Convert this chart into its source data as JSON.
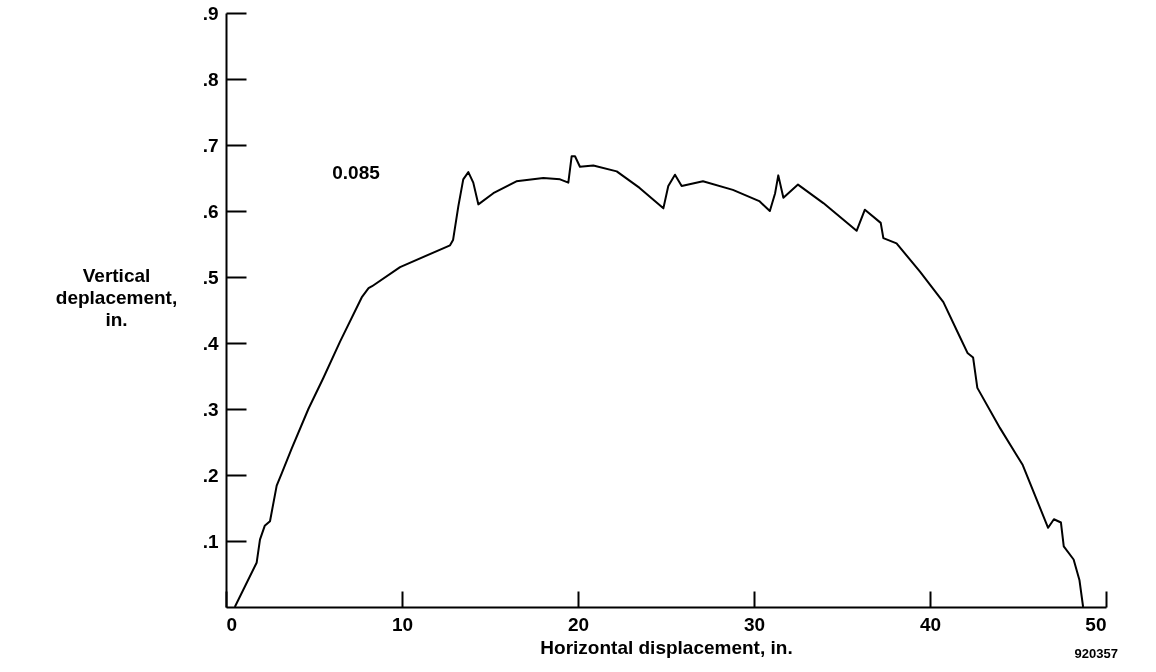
{
  "chart_data": {
    "type": "line",
    "xlabel": "Horizontal displacement, in.",
    "ylabel": "Vertical\ndeplacement,\nin.",
    "xlim": [
      0,
      50
    ],
    "xticks": [
      0,
      10,
      20,
      30,
      40,
      50
    ],
    "ylim": [
      0,
      0.9
    ],
    "yticks": [
      {
        "value": 0.1,
        "label": ".1"
      },
      {
        "value": 0.2,
        "label": ".2"
      },
      {
        "value": 0.3,
        "label": ".3"
      },
      {
        "value": 0.4,
        "label": ".4"
      },
      {
        "value": 0.5,
        "label": ".5"
      },
      {
        "value": 0.6,
        "label": ".6"
      },
      {
        "value": 0.7,
        "label": ".7"
      },
      {
        "value": 0.8,
        "label": ".8"
      },
      {
        "value": 0.9,
        "label": ".9"
      }
    ],
    "grid": false,
    "marker": "none",
    "line_style": "solid",
    "series": [
      {
        "color": "#000000",
        "x": [
          0.5,
          1.74,
          1.93,
          2.2,
          2.5,
          2.88,
          3.16,
          3.73,
          4.68,
          5.53,
          6.48,
          7.71,
          8.1,
          8.3,
          9.89,
          12.73,
          12.9,
          13.2,
          13.48,
          13.77,
          14.05,
          14.34,
          15.19,
          16.5,
          18.03,
          18.98,
          19.45,
          19.64,
          19.83,
          20.11,
          20.87,
          22.2,
          23.5,
          24.85,
          25.13,
          25.51,
          25.89,
          27.1,
          28.8,
          30.3,
          30.9,
          31.2,
          31.38,
          31.67,
          32.5,
          33.94,
          35.83,
          36.3,
          37.2,
          37.35,
          38.1,
          39.43,
          40.76,
          41.72,
          42.13,
          42.45,
          42.69,
          43.98,
          45.27,
          46.71,
          47.04,
          47.44,
          47.6,
          48.16,
          48.49,
          48.7
        ],
        "values": [
          0,
          0.067,
          0.102,
          0.123,
          0.13,
          0.184,
          0.202,
          0.24,
          0.3,
          0.347,
          0.402,
          0.469,
          0.483,
          0.486,
          0.515,
          0.548,
          0.556,
          0.607,
          0.648,
          0.659,
          0.643,
          0.61,
          0.627,
          0.645,
          0.65,
          0.648,
          0.643,
          0.683,
          0.683,
          0.667,
          0.669,
          0.66,
          0.635,
          0.604,
          0.638,
          0.655,
          0.638,
          0.645,
          0.632,
          0.615,
          0.6,
          0.627,
          0.654,
          0.62,
          0.64,
          0.612,
          0.57,
          0.602,
          0.582,
          0.559,
          0.551,
          0.508,
          0.462,
          0.408,
          0.385,
          0.378,
          0.332,
          0.271,
          0.215,
          0.12,
          0.133,
          0.128,
          0.092,
          0.072,
          0.041,
          0
        ]
      }
    ],
    "annotations": [
      "0.085",
      "920357"
    ]
  }
}
